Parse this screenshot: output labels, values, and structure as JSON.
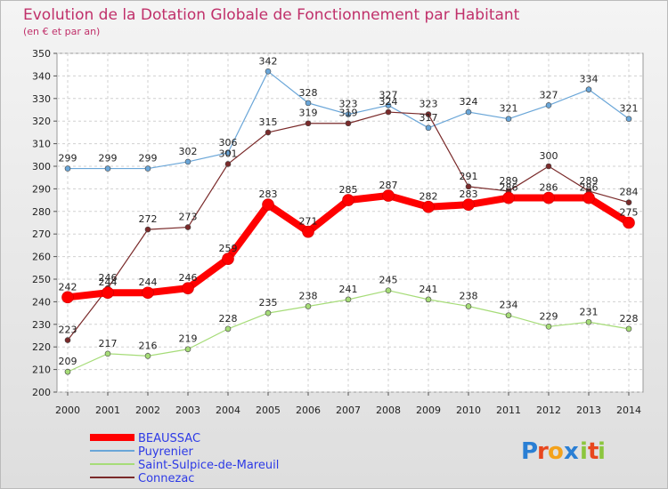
{
  "chart_data": {
    "type": "line",
    "title": "Evolution de la Dotation Globale de Fonctionnement par Habitant",
    "subtitle": "(en € et par an)",
    "x": [
      "2000",
      "2001",
      "2002",
      "2003",
      "2004",
      "2005",
      "2006",
      "2007",
      "2008",
      "2009",
      "2010",
      "2011",
      "2012",
      "2013",
      "2014"
    ],
    "ylim": [
      200,
      350
    ],
    "yticks": [
      200,
      210,
      220,
      230,
      240,
      250,
      260,
      270,
      280,
      290,
      300,
      310,
      320,
      330,
      340,
      350
    ],
    "grid": true,
    "legend_position": "bottom-left",
    "series": [
      {
        "name": "BEAUSSAC",
        "color": "#ff0000",
        "values": [
          242,
          244,
          244,
          246,
          259,
          283,
          271,
          285,
          287,
          282,
          283,
          286,
          286,
          286,
          275
        ]
      },
      {
        "name": "Puyrenier",
        "color": "#6aa6d8",
        "values": [
          299,
          299,
          299,
          302,
          306,
          342,
          328,
          323,
          327,
          317,
          324,
          321,
          327,
          334,
          321
        ]
      },
      {
        "name": "Saint-Sulpice-de-Mareuil",
        "color": "#a6dc78",
        "values": [
          209,
          217,
          216,
          219,
          228,
          235,
          238,
          241,
          245,
          241,
          238,
          234,
          229,
          231,
          228
        ]
      },
      {
        "name": "Connezac",
        "color": "#7a2a2a",
        "values": [
          223,
          246,
          272,
          273,
          301,
          315,
          319,
          319,
          324,
          323,
          291,
          289,
          300,
          289,
          284
        ]
      }
    ]
  },
  "logo": {
    "letters": [
      "P",
      "r",
      "o",
      "x",
      "i",
      "t",
      "i"
    ]
  }
}
